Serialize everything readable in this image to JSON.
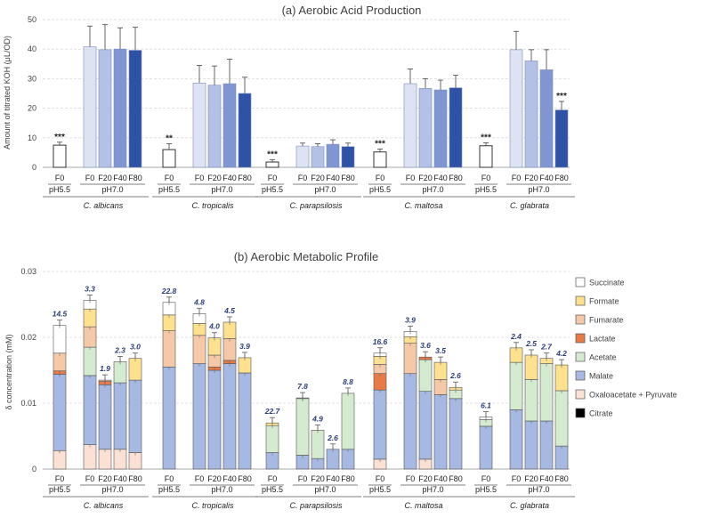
{
  "chart_data": [
    {
      "type": "bar",
      "title": "(a) Aerobic Acid Production",
      "ylabel": "Amount of titrated KOH (μL/OD)",
      "xlabel": "",
      "ylim": [
        0,
        50
      ],
      "yticks": [
        0,
        10,
        20,
        30,
        40,
        50
      ],
      "grid": true,
      "bar_labels": [
        "F0",
        "F0",
        "F20",
        "F40",
        "F80"
      ],
      "ph_labels": [
        "pH5.5",
        "pH7.0"
      ],
      "groups": [
        {
          "name": "C. albicans",
          "values": [
            7.5,
            40.8,
            39.8,
            40.0,
            39.6
          ],
          "errors": [
            1.0,
            7.0,
            8.5,
            7.2,
            7.8
          ],
          "sig": "***"
        },
        {
          "name": "C. tropicalis",
          "values": [
            6.0,
            28.5,
            27.8,
            28.3,
            25.0
          ],
          "errors": [
            2.0,
            6.0,
            6.5,
            8.3,
            5.5
          ],
          "sig": "**"
        },
        {
          "name": "C. parapsilosis",
          "values": [
            1.8,
            7.2,
            7.0,
            7.8,
            7.0
          ],
          "errors": [
            0.8,
            1.0,
            1.0,
            1.5,
            1.2
          ],
          "sig": "***"
        },
        {
          "name": "C. maltosa",
          "values": [
            5.2,
            28.3,
            26.7,
            26.2,
            26.9
          ],
          "errors": [
            1.0,
            5.0,
            3.3,
            3.3,
            4.3
          ],
          "sig": "***"
        },
        {
          "name": "C. glabrata",
          "values": [
            7.3,
            39.8,
            36.0,
            33.0,
            19.4
          ],
          "errors": [
            1.0,
            6.2,
            3.8,
            6.8,
            2.9
          ],
          "sig_f0": "***",
          "sig_f80": "***"
        }
      ],
      "colors": [
        "#ffffff",
        "#dde3f3",
        "#b3c1e6",
        "#7f96d2",
        "#2e52a5"
      ]
    },
    {
      "type": "stacked-bar",
      "title": "(b) Aerobic Metabolic Profile",
      "ylabel": "δ concentration (mM)",
      "ylim": [
        0,
        0.03
      ],
      "yticks": [
        0,
        0.01,
        0.02,
        0.03
      ],
      "ytick_labels": [
        "0",
        "0.01",
        "0.02",
        "0.03"
      ],
      "bar_labels": [
        "F0",
        "F0",
        "F20",
        "F40",
        "F80"
      ],
      "ph_labels": [
        "pH5.5",
        "pH7.0"
      ],
      "legend": [
        "Succinate",
        "Formate",
        "Fumarate",
        "Lactate",
        "Acetate",
        "Malate",
        "Oxaloacetate + Pyruvate",
        "Citrate"
      ],
      "legend_colors": [
        "#ffffff",
        "#fde18e",
        "#f5c8a8",
        "#e87a45",
        "#d5ebcf",
        "#a5b9e3",
        "#fbe1d4",
        "#000000"
      ],
      "stack_order": [
        "Oxaloacetate + Pyruvate",
        "Malate",
        "Acetate",
        "Lactate",
        "Fumarate",
        "Formate",
        "Succinate"
      ],
      "groups": [
        {
          "name": "C. albicans",
          "labels": [
            "14.5",
            "3.3",
            "1.9",
            "2.3",
            "3.0"
          ],
          "stacks": [
            [
              0.0028,
              0.0116,
              0.0,
              0.0005,
              0.0027,
              0.0,
              0.0042
            ],
            [
              0.0037,
              0.0105,
              0.0043,
              0.0,
              0.0031,
              0.0027,
              0.0013
            ],
            [
              0.003,
              0.0098,
              0.0,
              0.0005,
              0.0002,
              0.0,
              0.0
            ],
            [
              0.003,
              0.0101,
              0.0032,
              0.0,
              0.0,
              0.0,
              0.0
            ],
            [
              0.0025,
              0.011,
              0.0,
              0.0,
              0.0,
              0.0033,
              0.0
            ]
          ]
        },
        {
          "name": "C. tropicalis",
          "labels": [
            "22.8",
            "4.8",
            "4.0",
            "4.5",
            "3.9"
          ],
          "stacks": [
            [
              0.0,
              0.0155,
              0.0,
              0.0,
              0.0055,
              0.0024,
              0.0019
            ],
            [
              0.0,
              0.016,
              0.0,
              0.0,
              0.0043,
              0.0018,
              0.0015
            ],
            [
              0.0,
              0.015,
              0.0,
              0.0005,
              0.0018,
              0.0026,
              0.0
            ],
            [
              0.0,
              0.016,
              0.0,
              0.0005,
              0.0033,
              0.0025,
              0.0
            ],
            [
              0.0,
              0.0146,
              0.0,
              0.0,
              0.0,
              0.0023,
              0.0
            ]
          ]
        },
        {
          "name": "C. parapsilosis",
          "labels": [
            "22.7",
            "7.8",
            "4.9",
            "2.6",
            "8.8"
          ],
          "stacks": [
            [
              0.0,
              0.0025,
              0.0041,
              0.0,
              0.0,
              0.0004,
              0.0
            ],
            [
              0.0,
              0.0021,
              0.0086,
              0.0,
              0.0,
              0.0,
              0.0001
            ],
            [
              0.0,
              0.0016,
              0.0043,
              0.0,
              0.0,
              0.0,
              0.0
            ],
            [
              0.0,
              0.003,
              0.0,
              0.0,
              0.0,
              0.0,
              0.0
            ],
            [
              0.0,
              0.003,
              0.0085,
              0.0,
              0.0,
              0.0,
              0.0
            ]
          ]
        },
        {
          "name": "C. maltosa",
          "labels": [
            "16.6",
            "3.9",
            "3.6",
            "3.5",
            "2.6"
          ],
          "stacks": [
            [
              0.0015,
              0.0105,
              0.0,
              0.0025,
              0.0014,
              0.0012,
              0.0005
            ],
            [
              0.0,
              0.0145,
              0.0,
              0.0,
              0.0046,
              0.001,
              0.0008
            ],
            [
              0.0015,
              0.0103,
              0.0048,
              0.0004,
              0.0,
              0.0,
              0.0
            ],
            [
              0.0,
              0.0113,
              0.0,
              0.0,
              0.0023,
              0.0026,
              0.0
            ],
            [
              0.0,
              0.0107,
              0.0013,
              0.0,
              0.0,
              0.0004,
              0.0
            ]
          ]
        },
        {
          "name": "C. glabrata",
          "labels": [
            "6.1",
            "2.4",
            "2.5",
            "2.7",
            "4.2"
          ],
          "stacks": [
            [
              0.0,
              0.0065,
              0.001,
              0.0,
              0.0,
              0.0,
              0.0004
            ],
            [
              0.0,
              0.009,
              0.0072,
              0.0,
              0.0,
              0.0022,
              0.0
            ],
            [
              0.0,
              0.0073,
              0.0063,
              0.0,
              0.0,
              0.0037,
              0.0
            ],
            [
              0.0,
              0.0073,
              0.0087,
              0.0,
              0.0,
              0.0008,
              0.0
            ],
            [
              0.0,
              0.0035,
              0.0084,
              0.0,
              0.0,
              0.0039,
              0.0
            ]
          ]
        }
      ]
    }
  ]
}
